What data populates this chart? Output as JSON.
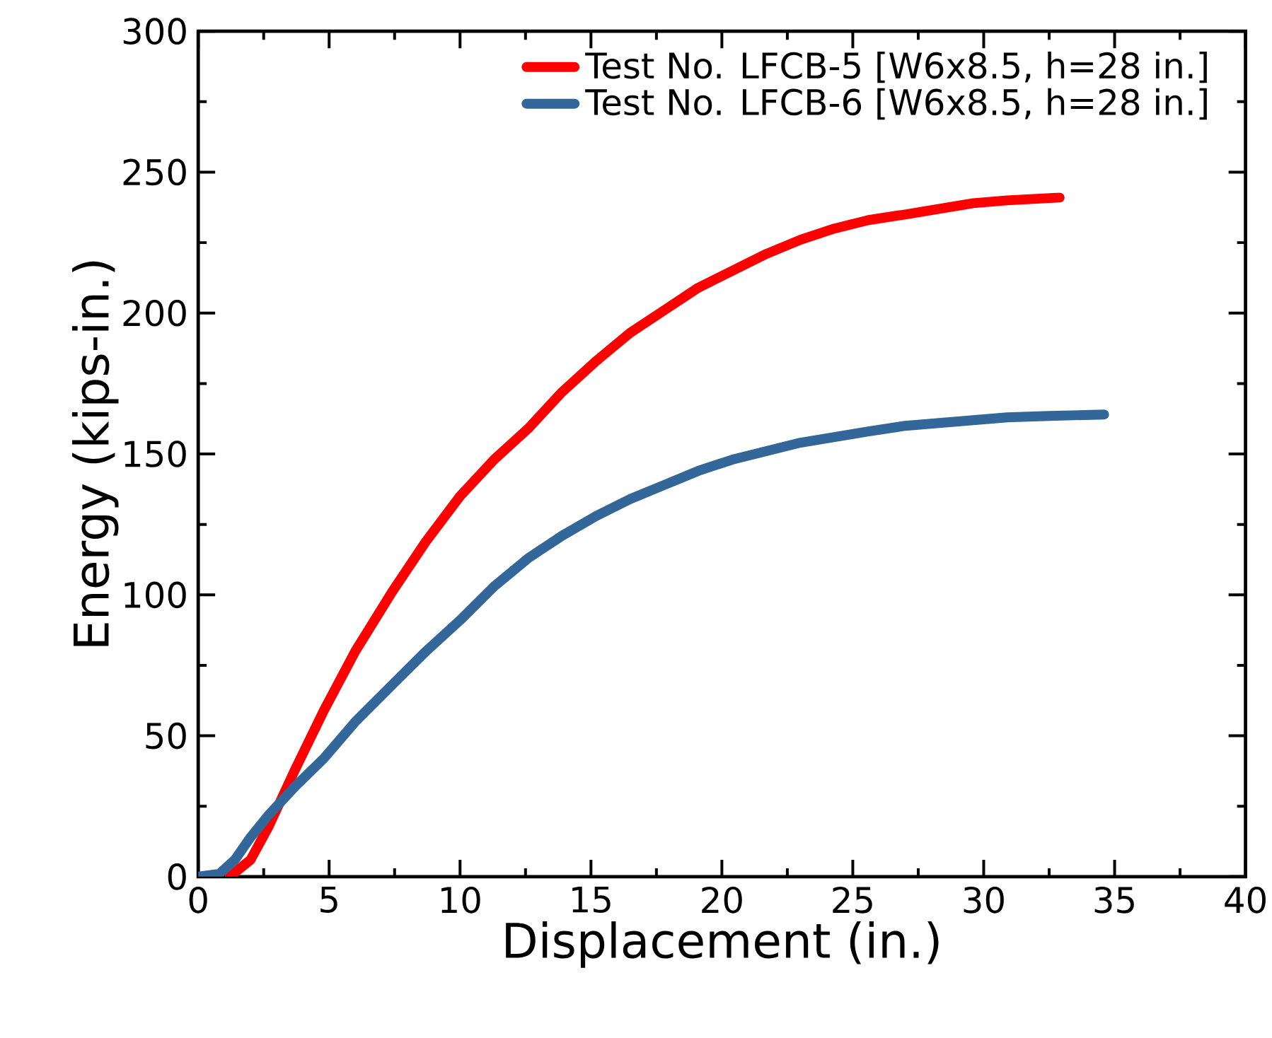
{
  "chart_data": {
    "type": "line",
    "xlabel": "Displacement (in.)",
    "ylabel": "Energy (kips-in.)",
    "xlim": [
      0,
      40
    ],
    "ylim": [
      0,
      300
    ],
    "xticks": [
      0,
      5,
      10,
      15,
      20,
      25,
      30,
      35,
      40
    ],
    "yticks": [
      0,
      50,
      100,
      150,
      200,
      250,
      300
    ],
    "legend": "top right",
    "grid": false,
    "marker": "none",
    "line_style": "solid",
    "series": [
      {
        "name": "Test No. LFCB-5 [W6x8.5, h=28 in.]",
        "color": "#ff0000",
        "x": [
          1.2,
          2.0,
          2.7,
          3.7,
          4.8,
          6.0,
          7.4,
          8.7,
          10,
          11.3,
          12.6,
          13.9,
          15.2,
          16.5,
          17.8,
          19.1,
          20.4,
          21.7,
          23,
          24.3,
          25.6,
          27,
          28.3,
          29.6,
          30.9,
          32.9
        ],
        "values": [
          0,
          6,
          18,
          38,
          59,
          80,
          101,
          119,
          135,
          148,
          159,
          172,
          183,
          193,
          201,
          209,
          215,
          221,
          226,
          230,
          233,
          235,
          237,
          239,
          240,
          241
        ]
      },
      {
        "name": "Test No. LFCB-6 [W6x8.5, h=28 in.]",
        "color": "#336699",
        "x": [
          0,
          0.8,
          1.4,
          2.0,
          2.7,
          3.7,
          4.8,
          6.0,
          7.4,
          8.7,
          10,
          11.3,
          12.6,
          13.9,
          15.2,
          16.5,
          17.8,
          19.1,
          20.4,
          21.7,
          23,
          24.3,
          25.6,
          27,
          28.3,
          30.9,
          32.5,
          34.6
        ],
        "values": [
          0,
          1,
          6,
          14,
          22,
          32,
          42,
          55,
          68,
          80,
          91,
          103,
          113,
          121,
          128,
          134,
          139,
          144,
          148,
          151,
          154,
          156,
          158,
          160,
          161,
          163,
          163.5,
          164
        ]
      }
    ]
  }
}
